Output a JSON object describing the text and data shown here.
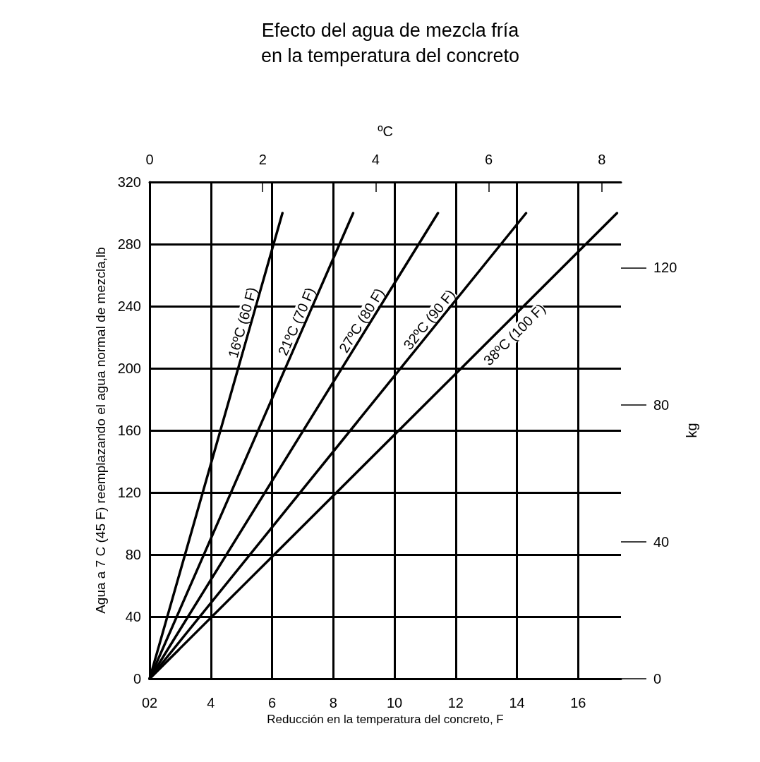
{
  "chart_data": {
    "type": "line",
    "title": "Efecto del agua de mezcla fría\nen la temperatura del concreto",
    "xlabel": "Reducción en la temperatura del concreto, F",
    "ylabel": "Agua a 7 C (45 F) reemplazando el agua normal de mezcla,lb",
    "x2label": "ºC",
    "y2label": "kg",
    "xlim": [
      2,
      17.4
    ],
    "xticks": [
      {
        "value": 2,
        "label": "02"
      },
      4,
      6,
      8,
      10,
      12,
      14,
      16
    ],
    "ylim": [
      0,
      320
    ],
    "yticks": [
      0,
      40,
      80,
      120,
      160,
      200,
      240,
      280,
      320
    ],
    "x2lim": [
      0,
      8.34
    ],
    "x2ticks": [
      0,
      2,
      4,
      6,
      8
    ],
    "y2lim": [
      0,
      145
    ],
    "y2ticks": [
      0,
      40,
      80,
      120
    ],
    "grid": true,
    "legend": false,
    "marker": "none",
    "line_style": "solid",
    "series": [
      {
        "name": "16ºC (60 F)",
        "color": "#000000",
        "x": [
          2,
          6.34
        ],
        "values": [
          0,
          300
        ]
      },
      {
        "name": "21ºC (70 F)",
        "color": "#000000",
        "x": [
          2,
          8.65
        ],
        "values": [
          0,
          300
        ]
      },
      {
        "name": "27ºC (80 F)",
        "color": "#000000",
        "x": [
          2,
          11.42
        ],
        "values": [
          0,
          300
        ]
      },
      {
        "name": "32ºC (90 F)",
        "color": "#000000",
        "x": [
          2,
          14.3
        ],
        "values": [
          0,
          300
        ]
      },
      {
        "name": "38ºC (100 F)",
        "color": "#000000",
        "x": [
          2,
          17.27
        ],
        "values": [
          0,
          300
        ]
      }
    ]
  }
}
